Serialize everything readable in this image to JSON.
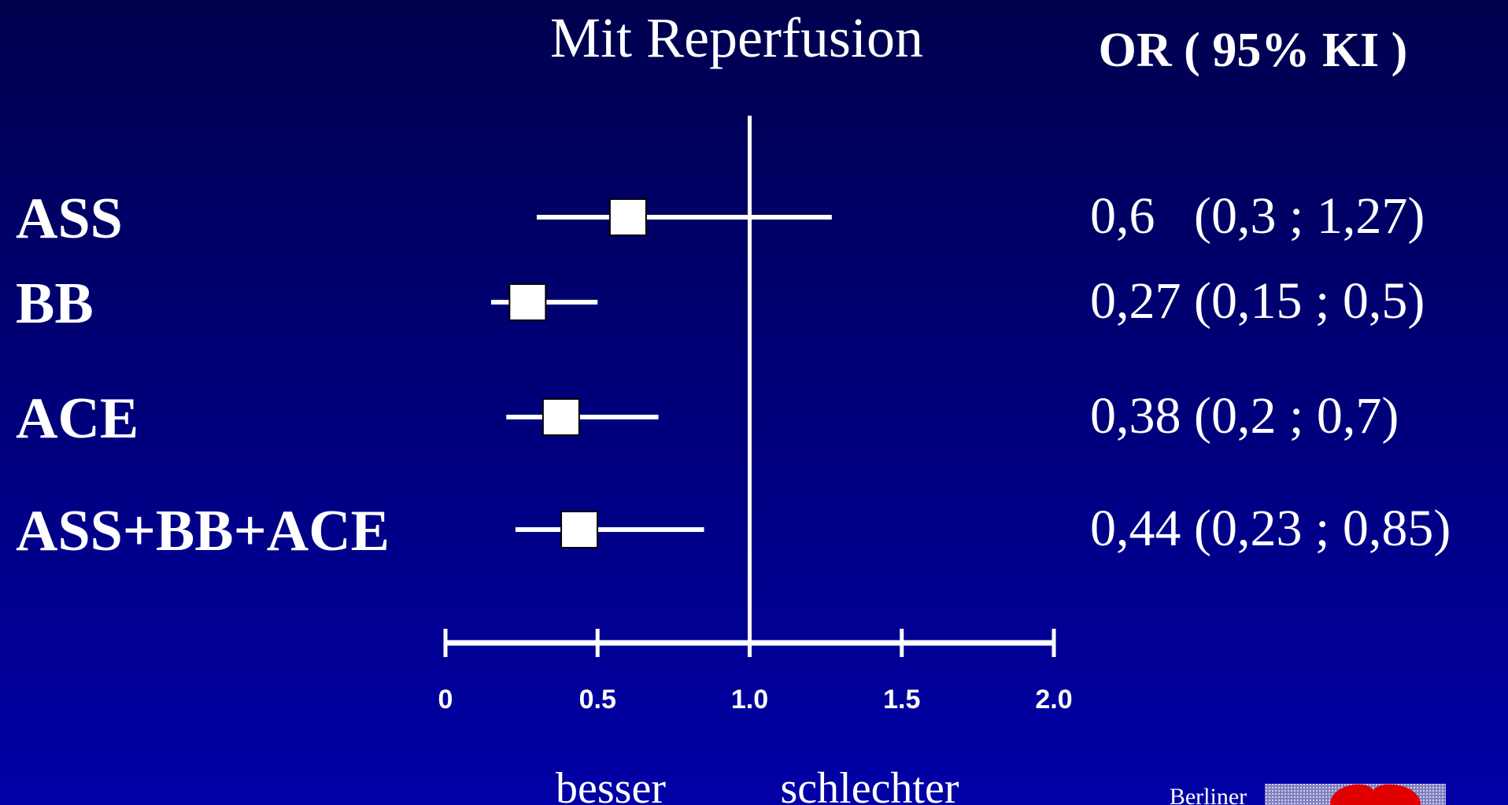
{
  "chart_data": {
    "type": "forest",
    "title": "Mit Reperfusion",
    "column_header": "OR ( 95% KI )",
    "categories": [
      "ASS",
      "BB",
      "ACE",
      "ASS+BB+ACE"
    ],
    "values": [
      0.6,
      0.27,
      0.38,
      0.44
    ],
    "ci_low": [
      0.3,
      0.15,
      0.2,
      0.23
    ],
    "ci_high": [
      1.27,
      0.5,
      0.7,
      0.85
    ],
    "value_labels": [
      "0,6   (0,3 ; 1,27)",
      "0,27 (0,15 ; 0,5)",
      "0,38 (0,2 ; 0,7)",
      "0,44 (0,23 ; 0,85)"
    ],
    "xlim": [
      0,
      2
    ],
    "xticks": [
      0,
      0.5,
      {
        "value": 1,
        "label": "1.0"
      },
      1.5,
      {
        "value": 2,
        "label": "2.0"
      }
    ],
    "reference_line": 1,
    "x_annotations": [
      "besser",
      "schlechter"
    ],
    "logo_text": "Berliner",
    "color": "#ffffff"
  }
}
